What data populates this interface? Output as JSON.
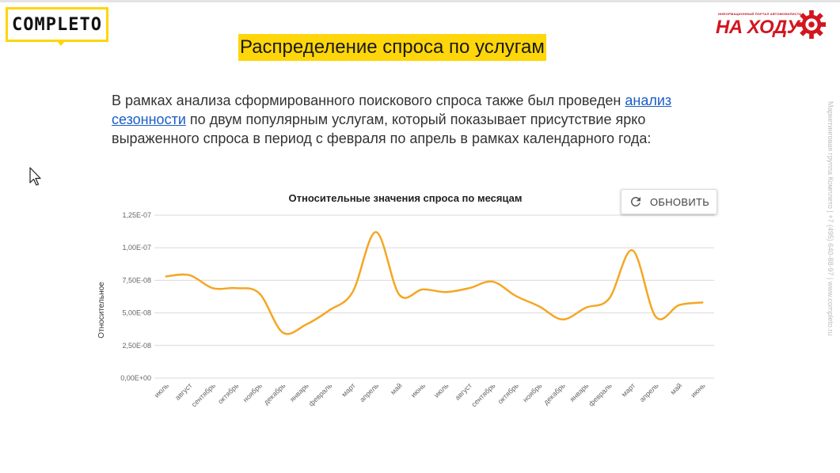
{
  "brand": {
    "left_logo": "COMPLETO",
    "right_logo_word": "НА ХОДУ",
    "right_logo_tagline": "ИНФОРМАЦИОННЫЙ ПОРТАЛ АВТОМОБИЛИСТА",
    "accent_color": "#ffd60a",
    "right_logo_color": "#d2161f"
  },
  "slide": {
    "title": "Распределение спроса по услугам",
    "paragraph_before_link": "В рамках анализа сформированного поискового спроса также был проведен ",
    "link_text": "анализ сезонности",
    "paragraph_after_link": " по двум популярным услугам, который показывает присутствие ярко выраженного спроса в период с февраля по апрель в рамках календарного года:"
  },
  "side_caption": "Маркетинговая группа Комплето  |  +7 (495) 640-88-97  |  www.completo.ru",
  "refresh_button": {
    "icon": "refresh-icon",
    "label": "ОБНОВИТЬ"
  },
  "chart_data": {
    "type": "line",
    "title": "Относительные значения спроса по месяцам",
    "ylabel": "Относительное",
    "xlabel": "",
    "ylim": [
      0,
      1.25e-07
    ],
    "y_ticks": [
      0,
      2.5e-08,
      5e-08,
      7.5e-08,
      1e-07,
      1.25e-07
    ],
    "y_tick_labels": [
      "0,00E+00",
      "2,50E-08",
      "5,00E-08",
      "7,50E-08",
      "1,00E-07",
      "1,25E-07"
    ],
    "categories": [
      "июль",
      "август",
      "сентябрь",
      "октябрь",
      "ноябрь",
      "декабрь",
      "январь",
      "февраль",
      "март",
      "апрель",
      "май",
      "июнь",
      "июль",
      "август",
      "сентябрь",
      "октябрь",
      "ноябрь",
      "декабрь",
      "январь",
      "февраль",
      "март",
      "апрель",
      "май",
      "июнь"
    ],
    "series": [
      {
        "color": "#f5a623",
        "values": [
          7.8e-08,
          7.9e-08,
          6.9e-08,
          6.9e-08,
          6.5e-08,
          3.5e-08,
          4.1e-08,
          5.2e-08,
          6.6e-08,
          1.12e-07,
          6.4e-08,
          6.8e-08,
          6.6e-08,
          6.9e-08,
          7.4e-08,
          6.3e-08,
          5.5e-08,
          4.5e-08,
          5.4e-08,
          6.1e-08,
          9.8e-08,
          4.7e-08,
          5.6e-08,
          5.8e-08
        ]
      }
    ],
    "grid": true,
    "legend": "none"
  }
}
